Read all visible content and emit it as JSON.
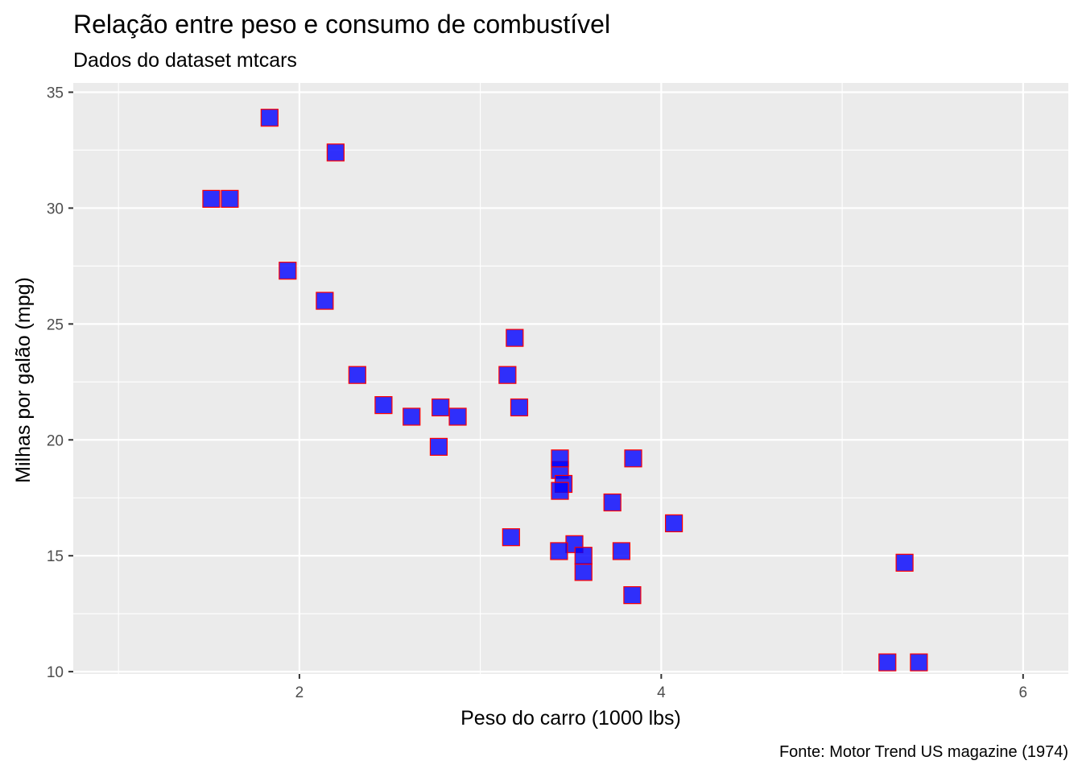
{
  "chart_data": {
    "type": "scatter",
    "title": "Relação entre peso e consumo de combustível",
    "subtitle": "Dados do dataset mtcars",
    "xlabel": "Peso do carro (1000 lbs)",
    "ylabel": "Milhas por galão (mpg)",
    "caption": "Fonte: Motor Trend US magazine (1974)",
    "xlim": [
      0.75,
      6.25
    ],
    "ylim": [
      9.9,
      35.4
    ],
    "x_ticks": [
      2,
      4,
      6
    ],
    "y_ticks": [
      10,
      15,
      20,
      25,
      30,
      35
    ],
    "grid": true,
    "panel_background": "#ebebeb",
    "grid_color": "#ffffff",
    "marker": "square",
    "marker_fill": "#0000ff",
    "marker_fill_opacity": 0.8,
    "marker_stroke": "#ff0000",
    "points": [
      {
        "x": 2.62,
        "y": 21.0
      },
      {
        "x": 2.875,
        "y": 21.0
      },
      {
        "x": 2.32,
        "y": 22.8
      },
      {
        "x": 3.215,
        "y": 21.4
      },
      {
        "x": 3.44,
        "y": 18.7
      },
      {
        "x": 3.46,
        "y": 18.1
      },
      {
        "x": 3.57,
        "y": 14.3
      },
      {
        "x": 3.19,
        "y": 24.4
      },
      {
        "x": 3.15,
        "y": 22.8
      },
      {
        "x": 3.44,
        "y": 19.2
      },
      {
        "x": 3.44,
        "y": 17.8
      },
      {
        "x": 4.07,
        "y": 16.4
      },
      {
        "x": 3.73,
        "y": 17.3
      },
      {
        "x": 3.78,
        "y": 15.2
      },
      {
        "x": 5.25,
        "y": 10.4
      },
      {
        "x": 5.424,
        "y": 10.4
      },
      {
        "x": 5.345,
        "y": 14.7
      },
      {
        "x": 2.2,
        "y": 32.4
      },
      {
        "x": 1.615,
        "y": 30.4
      },
      {
        "x": 1.835,
        "y": 33.9
      },
      {
        "x": 2.465,
        "y": 21.5
      },
      {
        "x": 3.52,
        "y": 15.5
      },
      {
        "x": 3.435,
        "y": 15.2
      },
      {
        "x": 3.84,
        "y": 13.3
      },
      {
        "x": 3.845,
        "y": 19.2
      },
      {
        "x": 1.935,
        "y": 27.3
      },
      {
        "x": 2.14,
        "y": 26.0
      },
      {
        "x": 1.513,
        "y": 30.4
      },
      {
        "x": 3.17,
        "y": 15.8
      },
      {
        "x": 2.77,
        "y": 19.7
      },
      {
        "x": 3.57,
        "y": 15.0
      },
      {
        "x": 2.78,
        "y": 21.4
      }
    ]
  }
}
